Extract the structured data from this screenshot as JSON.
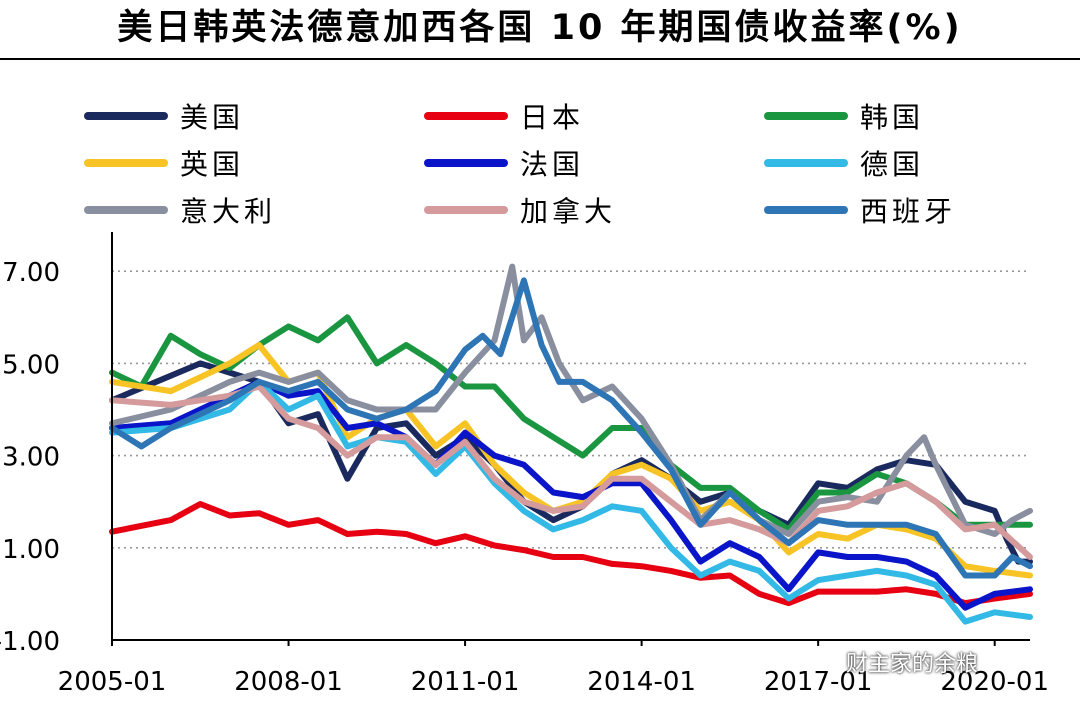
{
  "title": "美日韩英法德意加西各国 10 年期国债收益率(%)",
  "watermark": "财主家的余粮",
  "chart_data": {
    "type": "line",
    "title": "美日韩英法德意加西各国 10 年期国债收益率(%)",
    "xlabel": "",
    "ylabel": "",
    "x_ticks": [
      "2005-01",
      "2008-01",
      "2011-01",
      "2014-01",
      "2017-01",
      "2020-01"
    ],
    "y_ticks": [
      -1.0,
      1.0,
      3.0,
      5.0,
      7.0
    ],
    "y_tick_labels": [
      "-1.00",
      "1.00",
      "3.00",
      "5.00",
      "7.00"
    ],
    "ylim": [
      -1,
      7.2
    ],
    "xlim": [
      2005.0,
      2020.6
    ],
    "grid": "horizontal dotted",
    "legend_placement": "top",
    "series": [
      {
        "name": "美国",
        "color": "#1a2a5e",
        "x": [
          2005.0,
          2006.5,
          2007.5,
          2008.0,
          2008.5,
          2009.0,
          2009.5,
          2010.0,
          2010.5,
          2011.0,
          2011.5,
          2012.0,
          2012.5,
          2013.0,
          2013.5,
          2014.0,
          2014.5,
          2015.0,
          2015.5,
          2016.0,
          2016.5,
          2017.0,
          2017.5,
          2018.0,
          2018.5,
          2019.0,
          2019.5,
          2020.0,
          2020.2,
          2020.4,
          2020.6
        ],
        "y": [
          4.2,
          5.0,
          4.6,
          3.7,
          3.9,
          2.5,
          3.6,
          3.7,
          3.0,
          3.4,
          2.8,
          2.0,
          1.6,
          1.9,
          2.6,
          2.9,
          2.5,
          2.0,
          2.2,
          1.8,
          1.5,
          2.4,
          2.3,
          2.7,
          2.9,
          2.8,
          2.0,
          1.8,
          1.2,
          0.7,
          0.7
        ]
      },
      {
        "name": "日本",
        "color": "#e60012",
        "x": [
          2005.0,
          2006.0,
          2006.5,
          2007.0,
          2007.5,
          2008.0,
          2008.5,
          2009.0,
          2009.5,
          2010.0,
          2010.5,
          2011.0,
          2011.5,
          2012.0,
          2012.5,
          2013.0,
          2013.5,
          2014.0,
          2014.5,
          2015.0,
          2015.5,
          2016.0,
          2016.5,
          2017.0,
          2017.5,
          2018.0,
          2018.5,
          2019.0,
          2019.5,
          2020.0,
          2020.6
        ],
        "y": [
          1.35,
          1.6,
          1.95,
          1.7,
          1.75,
          1.5,
          1.6,
          1.3,
          1.35,
          1.3,
          1.1,
          1.25,
          1.05,
          0.95,
          0.8,
          0.8,
          0.65,
          0.6,
          0.5,
          0.35,
          0.4,
          0.0,
          -0.2,
          0.05,
          0.05,
          0.05,
          0.1,
          0.0,
          -0.2,
          -0.1,
          0.0
        ]
      },
      {
        "name": "韩国",
        "color": "#1a9641",
        "x": [
          2005.0,
          2005.5,
          2006.0,
          2006.5,
          2007.0,
          2007.5,
          2008.0,
          2008.5,
          2009.0,
          2009.5,
          2010.0,
          2010.5,
          2011.0,
          2011.5,
          2012.0,
          2012.5,
          2013.0,
          2013.5,
          2014.0,
          2014.5,
          2015.0,
          2015.5,
          2016.0,
          2016.5,
          2017.0,
          2017.5,
          2018.0,
          2018.5,
          2019.0,
          2019.5,
          2020.0,
          2020.6
        ],
        "y": [
          4.8,
          4.5,
          5.6,
          5.2,
          4.9,
          5.4,
          5.8,
          5.5,
          6.0,
          5.0,
          5.4,
          5.0,
          4.5,
          4.5,
          3.8,
          3.4,
          3.0,
          3.6,
          3.6,
          2.8,
          2.3,
          2.3,
          1.8,
          1.4,
          2.2,
          2.2,
          2.6,
          2.4,
          2.0,
          1.5,
          1.5,
          1.5
        ]
      },
      {
        "name": "英国",
        "color": "#f7c325",
        "x": [
          2005.0,
          2006.0,
          2007.0,
          2007.5,
          2008.0,
          2008.5,
          2009.0,
          2009.5,
          2010.0,
          2010.5,
          2011.0,
          2011.5,
          2012.0,
          2012.5,
          2013.0,
          2013.5,
          2014.0,
          2014.5,
          2015.0,
          2015.5,
          2016.0,
          2016.5,
          2017.0,
          2017.5,
          2018.0,
          2018.5,
          2019.0,
          2019.5,
          2020.0,
          2020.6
        ],
        "y": [
          4.6,
          4.4,
          5.0,
          5.4,
          4.6,
          4.8,
          3.4,
          3.8,
          4.0,
          3.2,
          3.7,
          2.8,
          2.2,
          1.8,
          2.0,
          2.6,
          2.8,
          2.5,
          1.8,
          2.0,
          1.6,
          0.9,
          1.3,
          1.2,
          1.5,
          1.4,
          1.2,
          0.6,
          0.5,
          0.4
        ]
      },
      {
        "name": "法国",
        "color": "#0a14c8",
        "x": [
          2005.0,
          2006.0,
          2007.0,
          2007.5,
          2008.0,
          2008.5,
          2009.0,
          2009.5,
          2010.0,
          2010.5,
          2011.0,
          2011.5,
          2012.0,
          2012.5,
          2013.0,
          2013.5,
          2014.0,
          2014.5,
          2015.0,
          2015.5,
          2016.0,
          2016.5,
          2017.0,
          2017.5,
          2018.0,
          2018.5,
          2019.0,
          2019.5,
          2020.0,
          2020.6
        ],
        "y": [
          3.6,
          3.7,
          4.3,
          4.6,
          4.3,
          4.4,
          3.6,
          3.7,
          3.4,
          2.8,
          3.5,
          3.0,
          2.8,
          2.2,
          2.1,
          2.4,
          2.4,
          1.6,
          0.7,
          1.1,
          0.8,
          0.1,
          0.9,
          0.8,
          0.8,
          0.7,
          0.4,
          -0.3,
          0.0,
          0.1
        ]
      },
      {
        "name": "德国",
        "color": "#33b9e6",
        "x": [
          2005.0,
          2006.0,
          2007.0,
          2007.5,
          2008.0,
          2008.5,
          2009.0,
          2009.5,
          2010.0,
          2010.5,
          2011.0,
          2011.5,
          2012.0,
          2012.5,
          2013.0,
          2013.5,
          2014.0,
          2014.5,
          2015.0,
          2015.5,
          2016.0,
          2016.5,
          2017.0,
          2017.5,
          2018.0,
          2018.5,
          2019.0,
          2019.5,
          2020.0,
          2020.6
        ],
        "y": [
          3.5,
          3.6,
          4.0,
          4.6,
          4.0,
          4.3,
          3.2,
          3.4,
          3.3,
          2.6,
          3.2,
          2.4,
          1.8,
          1.4,
          1.6,
          1.9,
          1.8,
          1.0,
          0.4,
          0.7,
          0.5,
          -0.1,
          0.3,
          0.4,
          0.5,
          0.4,
          0.2,
          -0.6,
          -0.4,
          -0.5
        ]
      },
      {
        "name": "意大利",
        "color": "#8a8fa0",
        "x": [
          2005.0,
          2006.0,
          2007.0,
          2007.5,
          2008.0,
          2008.5,
          2009.0,
          2009.5,
          2010.0,
          2010.5,
          2011.0,
          2011.5,
          2011.8,
          2012.0,
          2012.3,
          2012.6,
          2013.0,
          2013.5,
          2014.0,
          2014.5,
          2015.0,
          2015.5,
          2016.0,
          2016.5,
          2017.0,
          2017.5,
          2018.0,
          2018.5,
          2018.8,
          2019.0,
          2019.5,
          2020.0,
          2020.3,
          2020.6
        ],
        "y": [
          3.7,
          4.0,
          4.6,
          4.8,
          4.6,
          4.8,
          4.2,
          4.0,
          4.0,
          4.0,
          4.8,
          5.5,
          7.1,
          5.5,
          6.0,
          5.0,
          4.2,
          4.5,
          3.8,
          2.8,
          1.6,
          2.2,
          1.6,
          1.3,
          2.0,
          2.1,
          2.0,
          3.0,
          3.4,
          2.8,
          1.5,
          1.3,
          1.6,
          1.8
        ]
      },
      {
        "name": "加拿大",
        "color": "#d49a9c",
        "x": [
          2005.0,
          2006.0,
          2007.0,
          2007.5,
          2008.0,
          2008.5,
          2009.0,
          2009.5,
          2010.0,
          2010.5,
          2011.0,
          2011.5,
          2012.0,
          2012.5,
          2013.0,
          2013.5,
          2014.0,
          2014.5,
          2015.0,
          2015.5,
          2016.0,
          2016.5,
          2017.0,
          2017.5,
          2018.0,
          2018.5,
          2019.0,
          2019.5,
          2020.0,
          2020.6
        ],
        "y": [
          4.2,
          4.1,
          4.3,
          4.5,
          3.8,
          3.6,
          3.0,
          3.4,
          3.4,
          2.8,
          3.3,
          2.5,
          2.0,
          1.8,
          1.9,
          2.5,
          2.5,
          2.0,
          1.5,
          1.6,
          1.4,
          1.1,
          1.8,
          1.9,
          2.2,
          2.4,
          2.0,
          1.4,
          1.5,
          0.8
        ]
      },
      {
        "name": "西班牙",
        "color": "#2e75b6",
        "x": [
          2005.0,
          2005.5,
          2006.0,
          2007.0,
          2007.5,
          2008.0,
          2008.5,
          2009.0,
          2009.5,
          2010.0,
          2010.5,
          2011.0,
          2011.3,
          2011.6,
          2012.0,
          2012.3,
          2012.6,
          2013.0,
          2013.5,
          2014.0,
          2014.5,
          2015.0,
          2015.5,
          2016.0,
          2016.5,
          2017.0,
          2017.5,
          2018.0,
          2018.5,
          2019.0,
          2019.5,
          2020.0,
          2020.3,
          2020.6
        ],
        "y": [
          3.6,
          3.2,
          3.6,
          4.2,
          4.6,
          4.4,
          4.6,
          4.0,
          3.8,
          4.0,
          4.4,
          5.3,
          5.6,
          5.2,
          6.8,
          5.4,
          4.6,
          4.6,
          4.2,
          3.5,
          2.7,
          1.5,
          2.2,
          1.6,
          1.1,
          1.6,
          1.5,
          1.5,
          1.5,
          1.3,
          0.4,
          0.4,
          0.8,
          0.6
        ]
      }
    ]
  }
}
